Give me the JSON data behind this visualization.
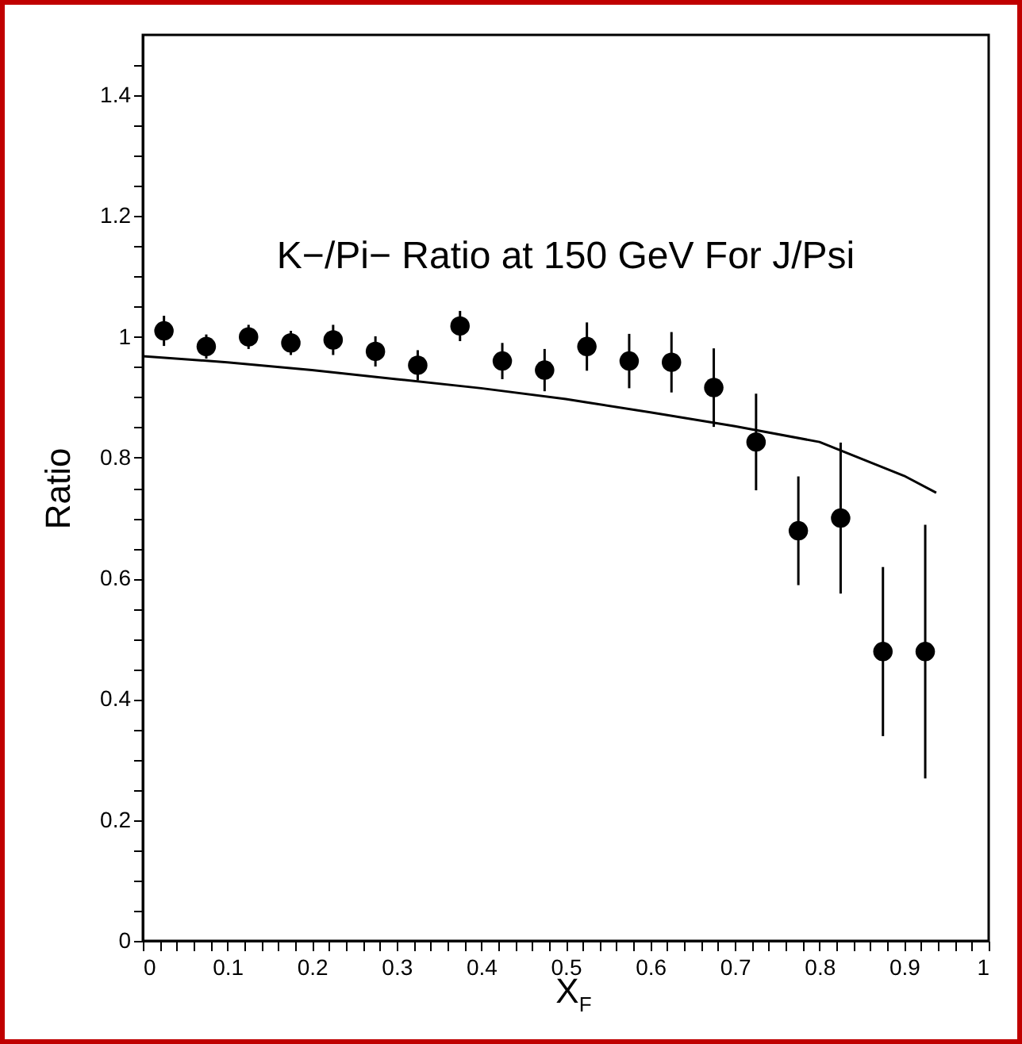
{
  "chart_data": {
    "type": "scatter",
    "title": "K−/Pi− Ratio at 150 GeV For J/Psi",
    "xlabel": "X$_{F}$",
    "ylabel": "Ratio",
    "series": [
      {
        "color": "#000000",
        "marker": "circle",
        "x": [
          0.025,
          0.075,
          0.125,
          0.175,
          0.225,
          0.275,
          0.325,
          0.375,
          0.425,
          0.475,
          0.525,
          0.575,
          0.625,
          0.675,
          0.725,
          0.775,
          0.825,
          0.875,
          0.925
        ],
        "values": [
          1.01,
          0.984,
          1.0,
          0.99,
          0.995,
          0.976,
          0.953,
          1.018,
          0.96,
          0.945,
          0.984,
          0.96,
          0.958,
          0.916,
          0.826,
          0.679,
          0.7,
          0.479,
          0.479
        ],
        "errors": [
          0.025,
          0.02,
          0.02,
          0.02,
          0.025,
          0.025,
          0.025,
          0.025,
          0.03,
          0.035,
          0.04,
          0.045,
          0.05,
          0.065,
          0.08,
          0.09,
          0.125,
          0.14,
          0.21
        ]
      },
      {
        "type": "line",
        "color": "#000000",
        "line_style": "solid",
        "x": [
          0,
          0.1,
          0.2,
          0.3,
          0.4,
          0.5,
          0.6,
          0.7,
          0.8,
          0.9,
          0.938
        ],
        "values": [
          0.968,
          0.958,
          0.945,
          0.93,
          0.915,
          0.897,
          0.875,
          0.852,
          0.826,
          0.77,
          0.742
        ]
      }
    ],
    "xlim": [
      0,
      1
    ],
    "ylim": [
      0,
      1.5
    ],
    "xticks": [
      0,
      {
        "value": 0.02,
        "label": null
      },
      {
        "value": 0.04,
        "label": null
      },
      {
        "value": 0.06,
        "label": null
      },
      {
        "value": 0.08,
        "label": null
      },
      0.1,
      {
        "value": 0.12,
        "label": null
      },
      {
        "value": 0.14,
        "label": null
      },
      {
        "value": 0.16,
        "label": null
      },
      {
        "value": 0.18,
        "label": null
      },
      0.2,
      {
        "value": 0.22,
        "label": null
      },
      {
        "value": 0.24,
        "label": null
      },
      {
        "value": 0.26,
        "label": null
      },
      {
        "value": 0.28,
        "label": null
      },
      0.3,
      {
        "value": 0.32,
        "label": null
      },
      {
        "value": 0.34,
        "label": null
      },
      {
        "value": 0.36,
        "label": null
      },
      {
        "value": 0.38,
        "label": null
      },
      0.4,
      {
        "value": 0.42,
        "label": null
      },
      {
        "value": 0.44,
        "label": null
      },
      {
        "value": 0.46,
        "label": null
      },
      {
        "value": 0.48,
        "label": null
      },
      0.5,
      {
        "value": 0.52,
        "label": null
      },
      {
        "value": 0.54,
        "label": null
      },
      {
        "value": 0.56,
        "label": null
      },
      {
        "value": 0.58,
        "label": null
      },
      0.6,
      {
        "value": 0.62,
        "label": null
      },
      {
        "value": 0.64,
        "label": null
      },
      {
        "value": 0.66,
        "label": null
      },
      {
        "value": 0.68,
        "label": null
      },
      0.7,
      {
        "value": 0.72,
        "label": null
      },
      {
        "value": 0.74,
        "label": null
      },
      {
        "value": 0.76,
        "label": null
      },
      {
        "value": 0.78,
        "label": null
      },
      0.8,
      {
        "value": 0.82,
        "label": null
      },
      {
        "value": 0.84,
        "label": null
      },
      {
        "value": 0.86,
        "label": null
      },
      {
        "value": 0.88,
        "label": null
      },
      0.9,
      {
        "value": 0.92,
        "label": null
      },
      {
        "value": 0.94,
        "label": null
      },
      {
        "value": 0.96,
        "label": null
      },
      {
        "value": 0.98,
        "label": null
      },
      1
    ],
    "yticks": [
      0,
      {
        "value": 0.05,
        "label": null
      },
      {
        "value": 0.1,
        "label": null
      },
      {
        "value": 0.15,
        "label": null
      },
      0.2,
      {
        "value": 0.25,
        "label": null
      },
      {
        "value": 0.3,
        "label": null
      },
      {
        "value": 0.35,
        "label": null
      },
      0.4,
      {
        "value": 0.45,
        "label": null
      },
      {
        "value": 0.5,
        "label": null
      },
      {
        "value": 0.55,
        "label": null
      },
      0.6,
      {
        "value": 0.65,
        "label": null
      },
      {
        "value": 0.7,
        "label": null
      },
      {
        "value": 0.75,
        "label": null
      },
      0.8,
      {
        "value": 0.85,
        "label": null
      },
      {
        "value": 0.9,
        "label": null
      },
      {
        "value": 0.95,
        "label": null
      },
      1,
      {
        "value": 1.05,
        "label": null
      },
      {
        "value": 1.1,
        "label": null
      },
      {
        "value": 1.15,
        "label": null
      },
      1.2,
      {
        "value": 1.25,
        "label": null
      },
      {
        "value": 1.3,
        "label": null
      },
      {
        "value": 1.35,
        "label": null
      },
      1.4,
      {
        "value": 1.45,
        "label": null
      }
    ],
    "grid": false
  }
}
